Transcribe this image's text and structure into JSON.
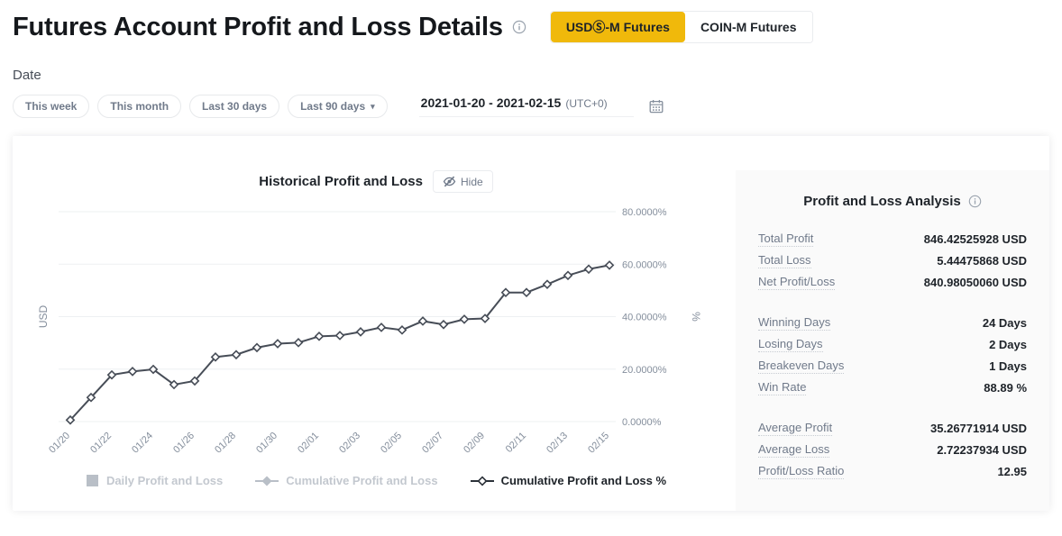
{
  "page": {
    "title": "Futures Account Profit and Loss Details"
  },
  "tabs": [
    {
      "label": "USDⓈ-M Futures",
      "active": true
    },
    {
      "label": "COIN-M Futures",
      "active": false
    }
  ],
  "filters": {
    "section_label": "Date",
    "presets": [
      {
        "label": "This week"
      },
      {
        "label": "This month"
      },
      {
        "label": "Last 30 days"
      },
      {
        "label": "Last 90 days",
        "caret": true
      }
    ],
    "range_value": "2021-01-20 - 2021-02-15",
    "timezone": "(UTC+0)"
  },
  "chart": {
    "title": "Historical Profit and Loss",
    "hide_label": "Hide"
  },
  "chart_data": {
    "type": "line",
    "title": "Historical Profit and Loss",
    "x": [
      "01/20",
      "01/21",
      "01/22",
      "01/23",
      "01/24",
      "01/25",
      "01/26",
      "01/27",
      "01/28",
      "01/29",
      "01/30",
      "01/31",
      "02/01",
      "02/02",
      "02/03",
      "02/04",
      "02/05",
      "02/06",
      "02/07",
      "02/08",
      "02/09",
      "02/10",
      "02/11",
      "02/12",
      "02/13",
      "02/14",
      "02/15"
    ],
    "x_tick_every": 2,
    "series": [
      {
        "name": "Cumulative Profit and Loss %",
        "values": [
          0.6,
          9.2,
          17.8,
          19.1,
          19.9,
          14.1,
          15.5,
          24.6,
          25.5,
          28.2,
          29.7,
          30.1,
          32.5,
          32.8,
          34.2,
          35.9,
          34.9,
          38.3,
          37.0,
          39.0,
          39.3,
          49.2,
          49.2,
          52.3,
          55.7,
          58.1,
          59.6
        ],
        "color": "#474d57",
        "marker": "hollow-diamond"
      }
    ],
    "y_axis_right": {
      "label": "%",
      "min": 0,
      "max": 80,
      "ticks": [
        "0.0000%",
        "20.0000%",
        "40.0000%",
        "60.0000%",
        "80.0000%"
      ]
    },
    "y_axis_left": {
      "label": "USD"
    },
    "grid": true,
    "legend_position": "bottom",
    "legend": [
      {
        "label": "Daily Profit and Loss",
        "enabled": false,
        "marker": "square"
      },
      {
        "label": "Cumulative Profit and Loss",
        "enabled": false,
        "marker": "line-solid-diamond"
      },
      {
        "label": "Cumulative Profit and Loss %",
        "enabled": true,
        "marker": "line-hollow-diamond"
      }
    ]
  },
  "analysis": {
    "title": "Profit and Loss Analysis",
    "groups": [
      {
        "rows": [
          {
            "label": "Total Profit",
            "value": "846.42525928 USD"
          },
          {
            "label": "Total Loss",
            "value": "5.44475868 USD"
          },
          {
            "label": "Net Profit/Loss",
            "value": "840.98050060 USD"
          }
        ]
      },
      {
        "rows": [
          {
            "label": "Winning Days",
            "value": "24 Days"
          },
          {
            "label": "Losing Days",
            "value": "2 Days"
          },
          {
            "label": "Breakeven Days",
            "value": "1 Days"
          },
          {
            "label": "Win Rate",
            "value": "88.89 %"
          }
        ]
      },
      {
        "rows": [
          {
            "label": "Average Profit",
            "value": "35.26771914 USD"
          },
          {
            "label": "Average Loss",
            "value": "2.72237934 USD"
          },
          {
            "label": "Profit/Loss Ratio",
            "value": "12.95"
          }
        ]
      }
    ]
  },
  "colors": {
    "accent": "#f0b90b",
    "line": "#474d57",
    "grid": "#eef0f2",
    "axis_text": "#848e9c",
    "disabled_legend": "#c3c8cf",
    "panel_bg": "#fafafa"
  }
}
